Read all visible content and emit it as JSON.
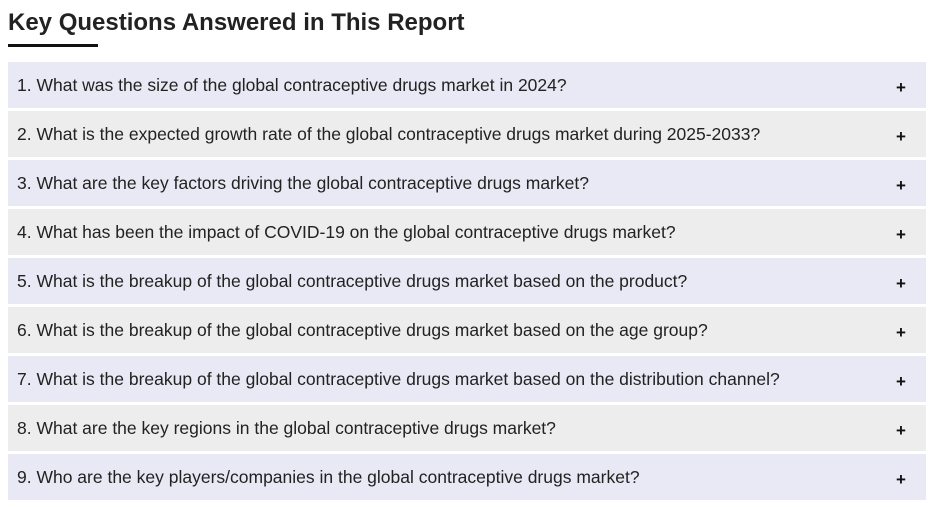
{
  "section": {
    "title": "Key Questions Answered in This Report"
  },
  "colors": {
    "row_tint_a": "#e8e9f4",
    "row_tint_b": "#ededed",
    "underline": "#111111"
  },
  "faq": {
    "toggle_icon": "plus-icon",
    "items": [
      {
        "question": "1. What was the size of the global contraceptive drugs market in 2024?",
        "toggle": "+"
      },
      {
        "question": "2. What is the expected growth rate of the global contraceptive drugs market during 2025-2033?",
        "toggle": "+"
      },
      {
        "question": "3. What are the key factors driving the global contraceptive drugs market?",
        "toggle": "+"
      },
      {
        "question": "4. What has been the impact of COVID-19 on the global contraceptive drugs market?",
        "toggle": "+"
      },
      {
        "question": "5. What is the breakup of the global contraceptive drugs market based on the product?",
        "toggle": "+"
      },
      {
        "question": "6. What is the breakup of the global contraceptive drugs market based on the age group?",
        "toggle": "+"
      },
      {
        "question": "7. What is the breakup of the global contraceptive drugs market based on the distribution channel?",
        "toggle": "+"
      },
      {
        "question": "8. What are the key regions in the global contraceptive drugs market?",
        "toggle": "+"
      },
      {
        "question": "9. Who are the key players/companies in the global contraceptive drugs market?",
        "toggle": "+"
      }
    ]
  }
}
